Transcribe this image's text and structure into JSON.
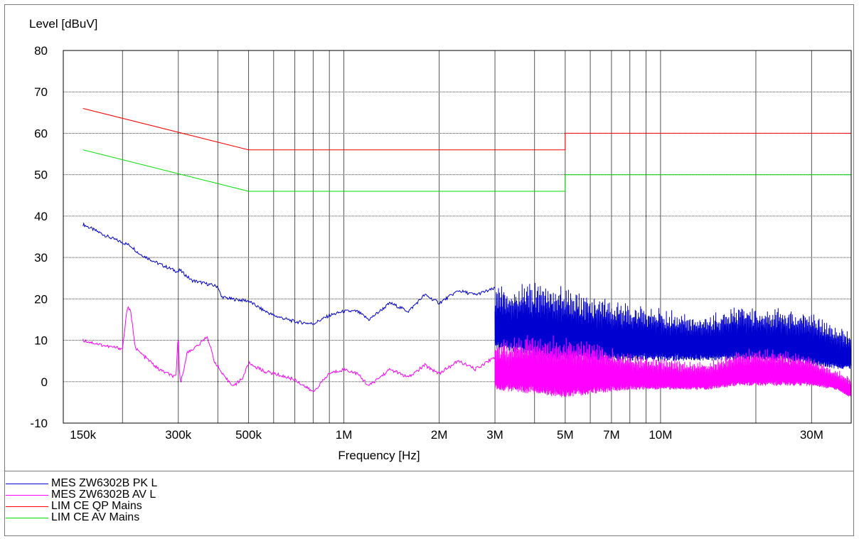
{
  "chart_data": {
    "type": "line",
    "title": "",
    "ylabel": "Level [dBuV]",
    "xlabel": "Frequency [Hz]",
    "xscale": "log",
    "xlim": [
      130000,
      40000000
    ],
    "ylim": [
      -10,
      80
    ],
    "yticks": [
      80,
      70,
      60,
      50,
      40,
      30,
      20,
      10,
      0,
      -10
    ],
    "xticks": [
      {
        "value": 150000,
        "label": "150k"
      },
      {
        "value": 300000,
        "label": "300k"
      },
      {
        "value": 500000,
        "label": "500k"
      },
      {
        "value": 1000000,
        "label": "1M"
      },
      {
        "value": 2000000,
        "label": "2M"
      },
      {
        "value": 3000000,
        "label": "3M"
      },
      {
        "value": 5000000,
        "label": "5M"
      },
      {
        "value": 7000000,
        "label": "7M"
      },
      {
        "value": 10000000,
        "label": "10M"
      },
      {
        "value": 30000000,
        "label": "30M"
      }
    ],
    "grid": true,
    "legend_position": "bottom-left",
    "series": [
      {
        "name": "MES  ZW6302B PK L",
        "color": "#0000d0",
        "x": [
          150000,
          180000,
          210000,
          215000,
          225000,
          260000,
          300000,
          303000,
          330000,
          400000,
          410000,
          440000,
          500000,
          550000,
          600000,
          700000,
          800000,
          900000,
          1000000,
          1100000,
          1200000,
          1400000,
          1600000,
          1800000,
          2000000,
          2300000,
          2600000,
          3000000
        ],
        "values": [
          38,
          35,
          33,
          32.5,
          31,
          28.5,
          26.5,
          27,
          24.5,
          23,
          20.5,
          20,
          19.5,
          17.5,
          16,
          14.5,
          14,
          16,
          17,
          17,
          15,
          19,
          17,
          21,
          19,
          22,
          21,
          22.5
        ],
        "envelope": {
          "x": [
            3000000,
            4000000,
            5000000,
            6000000,
            8000000,
            10000000,
            14000000,
            18000000,
            24000000,
            30000000,
            36000000,
            40000000
          ],
          "max": [
            23,
            24,
            23,
            21,
            19,
            18,
            16,
            19,
            18,
            17,
            14,
            12
          ],
          "min": [
            8,
            6,
            5,
            5,
            5,
            5,
            5,
            5,
            5,
            4,
            3,
            3
          ]
        }
      },
      {
        "name": "MES  ZW6302B AV L",
        "color": "#ff00ff",
        "x": [
          150000,
          180000,
          200000,
          207000,
          212000,
          220000,
          260000,
          295000,
          300000,
          303000,
          306000,
          320000,
          350000,
          370000,
          390000,
          420000,
          450000,
          480000,
          500000,
          560000,
          600000,
          700000,
          800000,
          900000,
          1000000,
          1100000,
          1200000,
          1400000,
          1600000,
          1800000,
          2000000,
          2300000,
          2600000,
          3000000
        ],
        "values": [
          10,
          8.5,
          8,
          18,
          17,
          8,
          3,
          1,
          12,
          1,
          0,
          7,
          9,
          11,
          5,
          1,
          -1,
          1,
          4.5,
          2.5,
          2,
          0.5,
          -2.5,
          2,
          3,
          2,
          -1,
          3,
          1,
          4,
          2,
          5,
          3,
          6
        ],
        "envelope": {
          "x": [
            3000000,
            4000000,
            5000000,
            6000000,
            8000000,
            10000000,
            14000000,
            18000000,
            24000000,
            30000000,
            36000000,
            40000000
          ],
          "max": [
            10,
            12,
            11,
            10,
            7,
            6,
            5,
            8,
            8,
            6,
            3,
            1
          ],
          "min": [
            -2,
            -3,
            -4,
            -3,
            -2,
            -2,
            -2,
            -1,
            -1,
            -1,
            -2,
            -4
          ]
        }
      },
      {
        "name": "LIM  CE QP Mains",
        "color": "#ff0000",
        "x": [
          150000,
          500000,
          5000000,
          5000000,
          40000000
        ],
        "values": [
          66,
          56,
          56,
          60,
          60
        ]
      },
      {
        "name": "LIM  CE AV Mains",
        "color": "#00dd00",
        "x": [
          150000,
          500000,
          5000000,
          5000000,
          40000000
        ],
        "values": [
          56,
          46,
          46,
          50,
          50
        ]
      }
    ]
  }
}
